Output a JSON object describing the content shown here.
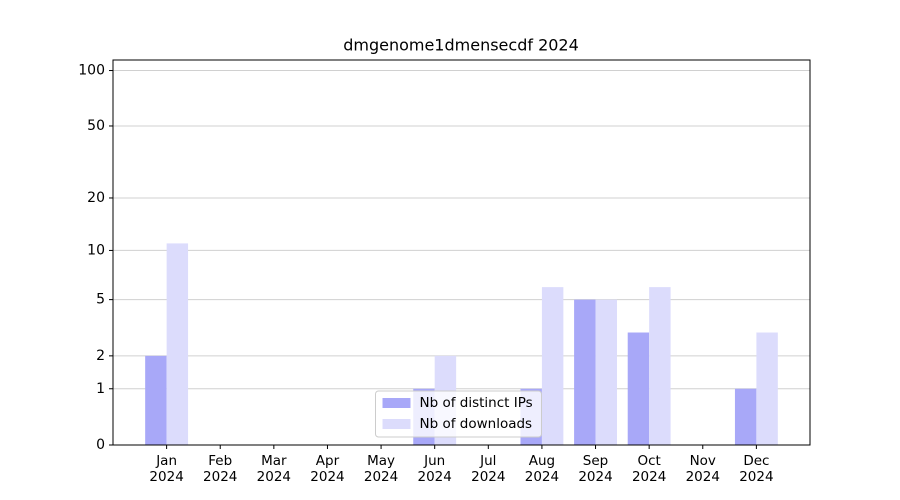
{
  "chart_data": {
    "type": "bar",
    "title": "dmgenome1dmensecdf 2024",
    "categories": [
      "Jan\n2024",
      "Feb\n2024",
      "Mar\n2024",
      "Apr\n2024",
      "May\n2024",
      "Jun\n2024",
      "Jul\n2024",
      "Aug\n2024",
      "Sep\n2024",
      "Oct\n2024",
      "Nov\n2024",
      "Dec\n2024"
    ],
    "series": [
      {
        "name": "Nb of distinct IPs",
        "color": "#a8a8f8",
        "values": [
          2,
          0,
          0,
          0,
          0,
          1,
          0,
          1,
          5,
          3,
          0,
          1
        ]
      },
      {
        "name": "Nb of downloads",
        "color": "#dcdcfc",
        "values": [
          11,
          0,
          0,
          0,
          0,
          2,
          0,
          6,
          5,
          6,
          0,
          3
        ]
      }
    ],
    "yscale": "log1p",
    "ylim": [
      0,
      114
    ],
    "yticks": [
      0,
      1,
      2,
      5,
      10,
      20,
      50,
      100
    ],
    "grid": true,
    "legend": "lower center"
  }
}
